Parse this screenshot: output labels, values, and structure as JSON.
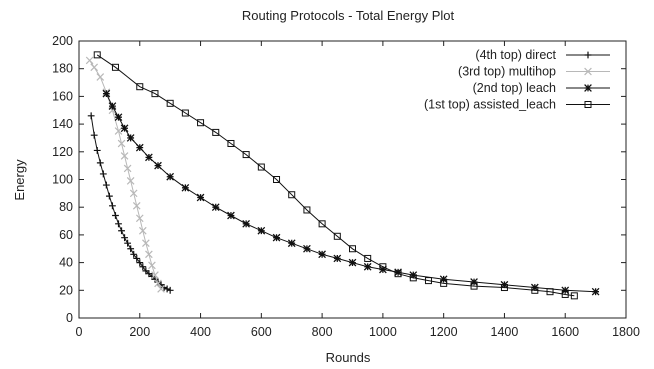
{
  "chart_data": {
    "type": "line",
    "title": "Routing Protocols - Total Energy Plot",
    "xlabel": "Rounds",
    "ylabel": "Energy",
    "xlim": [
      0,
      1800
    ],
    "ylim": [
      0,
      200
    ],
    "xticks": [
      0,
      200,
      400,
      600,
      800,
      1000,
      1200,
      1400,
      1600,
      1800
    ],
    "yticks": [
      0,
      20,
      40,
      60,
      80,
      100,
      120,
      140,
      160,
      180,
      200
    ],
    "grid": false,
    "legend_position": "top-right",
    "series": [
      {
        "name": "(4th top) direct",
        "color": "#111111",
        "marker": "plus",
        "x": [
          40,
          50,
          60,
          70,
          80,
          90,
          100,
          110,
          120,
          130,
          140,
          150,
          160,
          170,
          180,
          190,
          200,
          210,
          220,
          230,
          240,
          250,
          260,
          270,
          280,
          290,
          300
        ],
        "y": [
          146,
          132,
          121,
          112,
          104,
          96,
          88,
          81,
          74,
          68,
          63,
          58,
          54,
          50,
          46,
          43,
          40,
          37,
          34,
          32,
          30,
          28,
          26,
          24,
          22,
          21,
          20
        ]
      },
      {
        "name": "(3rd top) multihop",
        "color": "#b8b8b8",
        "marker": "cross",
        "x": [
          35,
          50,
          70,
          90,
          110,
          130,
          140,
          150,
          160,
          170,
          180,
          190,
          200,
          210,
          220,
          230,
          240,
          250,
          260,
          270
        ],
        "y": [
          186,
          181,
          174,
          163,
          150,
          135,
          126,
          117,
          108,
          99,
          90,
          81,
          72,
          63,
          54,
          46,
          38,
          31,
          25,
          21
        ]
      },
      {
        "name": "(2nd top) leach",
        "color": "#111111",
        "marker": "star",
        "x": [
          90,
          110,
          130,
          150,
          170,
          200,
          230,
          260,
          300,
          350,
          400,
          450,
          500,
          550,
          600,
          650,
          700,
          750,
          800,
          850,
          900,
          950,
          1000,
          1050,
          1100,
          1200,
          1300,
          1400,
          1500,
          1600,
          1700
        ],
        "y": [
          162,
          153,
          145,
          137,
          130,
          123,
          116,
          110,
          102,
          94,
          87,
          80,
          74,
          68,
          63,
          58,
          54,
          50,
          46,
          43,
          40,
          37,
          35,
          33,
          31,
          28,
          26,
          24,
          22,
          20,
          19
        ]
      },
      {
        "name": "(1st top) assisted_leach",
        "color": "#111111",
        "marker": "square",
        "x": [
          60,
          120,
          200,
          250,
          300,
          350,
          400,
          450,
          500,
          550,
          600,
          650,
          700,
          750,
          800,
          850,
          900,
          950,
          1000,
          1050,
          1100,
          1150,
          1200,
          1300,
          1400,
          1500,
          1550,
          1600,
          1630
        ],
        "y": [
          190,
          181,
          167,
          162,
          155,
          148,
          141,
          134,
          126,
          118,
          109,
          100,
          89,
          78,
          68,
          59,
          50,
          43,
          37,
          32,
          29,
          27,
          25,
          23,
          22,
          20,
          19,
          17,
          16
        ]
      }
    ]
  }
}
